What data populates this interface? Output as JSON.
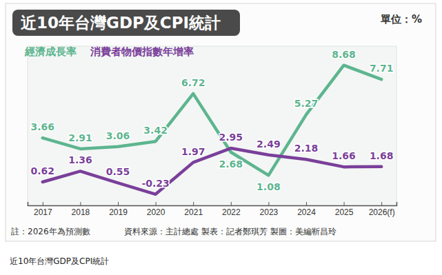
{
  "chart_data": {
    "type": "line",
    "title": "近10年台灣GDP及CPI統計",
    "subtitle": "單位：%",
    "annotations": [
      "註：2026年為預測數",
      "資料來源：主計總處 製表：記者鄭琪芳 製圖：美編靳昌玲"
    ],
    "caption": "近10年台灣GDP及CPI統計",
    "categories": [
      "2017",
      "2018",
      "2019",
      "2020",
      "2021",
      "2022",
      "2023",
      "2024",
      "2025",
      "2026(f)"
    ],
    "series": [
      {
        "name": "經濟成長率",
        "color": "#5db58f",
        "values": [
          3.66,
          2.91,
          3.06,
          3.42,
          6.72,
          2.68,
          1.08,
          5.27,
          8.68,
          7.71
        ]
      },
      {
        "name": "消費者物價指數年增率",
        "color": "#7a3f9a",
        "values": [
          0.62,
          1.36,
          0.55,
          -0.23,
          1.97,
          2.95,
          2.49,
          2.18,
          1.66,
          1.68
        ]
      }
    ],
    "ylim": [
      -1,
      10
    ],
    "grid": false,
    "legend": "top-left",
    "data_labels": true,
    "tick_labels": "x"
  }
}
